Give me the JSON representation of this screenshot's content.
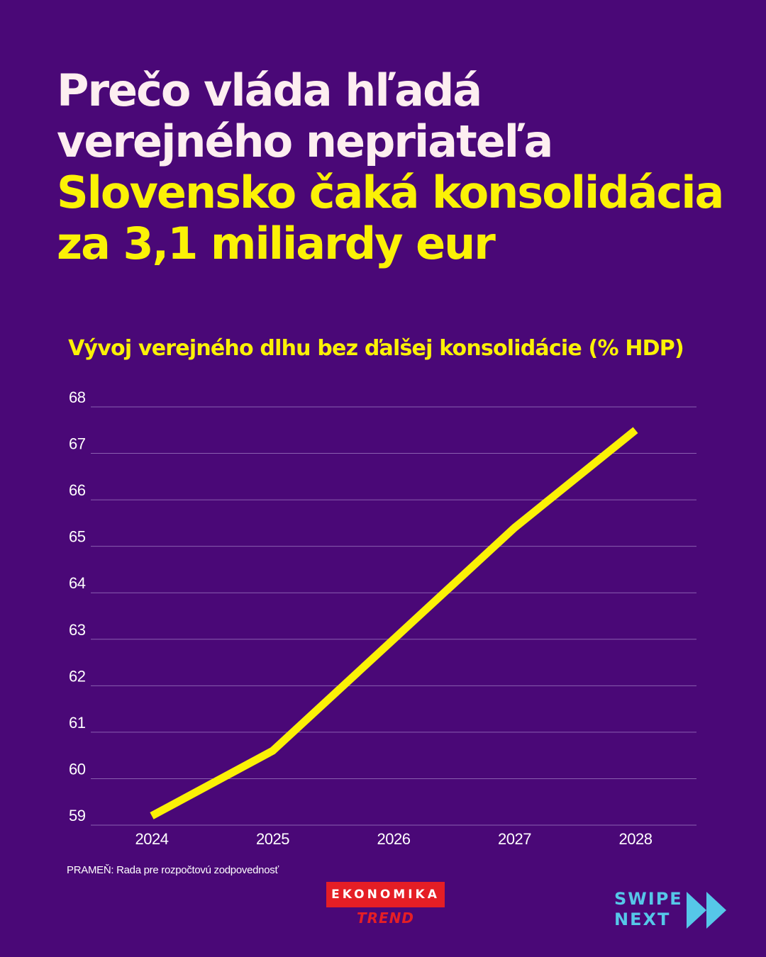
{
  "headline": {
    "line1": "Prečo vláda hľadá",
    "line2": "verejného nepriateľa",
    "line3": "Slovensko čaká konsolidácia",
    "line4": "za 3,1 miliardy eur"
  },
  "colors": {
    "background": "#4a0877",
    "accent_yellow": "#fbf106",
    "brand_red": "#e51e25",
    "swipe_cyan": "#56c7e8"
  },
  "chart_data": {
    "type": "line",
    "title": "Vývoj verejného dlhu bez ďalšej konsolidácie (% HDP)",
    "xlabel": "",
    "ylabel": "",
    "x": [
      "2024",
      "2025",
      "2026",
      "2027",
      "2028"
    ],
    "series": [
      {
        "values": [
          59.2,
          60.6,
          63.0,
          65.4,
          67.5
        ],
        "color": "#fbf106"
      }
    ],
    "ylim": [
      59,
      68
    ],
    "yticks": [
      59,
      60,
      61,
      62,
      63,
      64,
      65,
      66,
      67,
      68
    ],
    "grid": true,
    "legend": "none"
  },
  "source": "PRAMEŇ: Rada pre rozpočtovú zodpovednosť",
  "logo": {
    "top": "EKONOMIKA",
    "bottom": "TREND"
  },
  "swipe": {
    "line1": "SWIPE",
    "line2": "NEXT",
    "icon": "double-chevron-right-icon"
  }
}
